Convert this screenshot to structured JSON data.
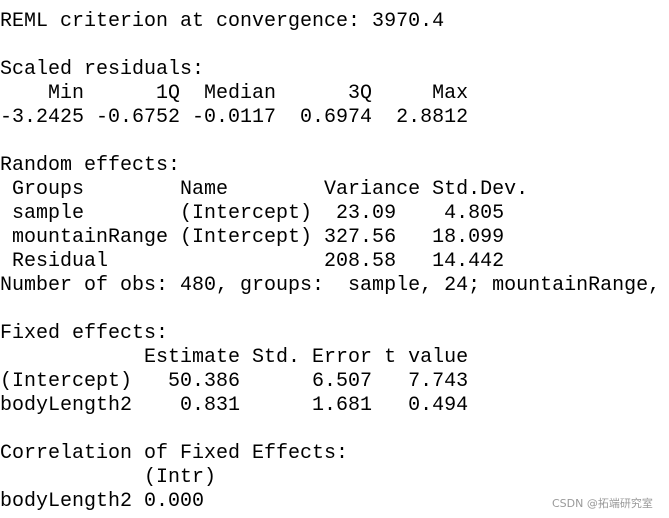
{
  "sections": [
    {
      "lines": [
        "REML criterion at convergence: 3970.4"
      ]
    },
    {
      "lines": [
        "Scaled residuals:",
        "    Min      1Q  Median      3Q     Max",
        "-3.2425 -0.6752 -0.0117  0.6974  2.8812"
      ]
    },
    {
      "lines": [
        "Random effects:",
        " Groups        Name        Variance Std.Dev.",
        " sample        (Intercept)  23.09    4.805",
        " mountainRange (Intercept) 327.56   18.099",
        " Residual                  208.58   14.442",
        "Number of obs: 480, groups:  sample, 24; mountainRange,"
      ]
    },
    {
      "lines": [
        "Fixed effects:",
        "            Estimate Std. Error t value",
        "(Intercept)   50.386      6.507   7.743",
        "bodyLength2    0.831      1.681   0.494"
      ]
    },
    {
      "lines": [
        "Correlation of Fixed Effects:",
        "            (Intr)",
        "bodyLength2 0.000"
      ]
    }
  ],
  "watermark": "CSDN @拓端研究室"
}
